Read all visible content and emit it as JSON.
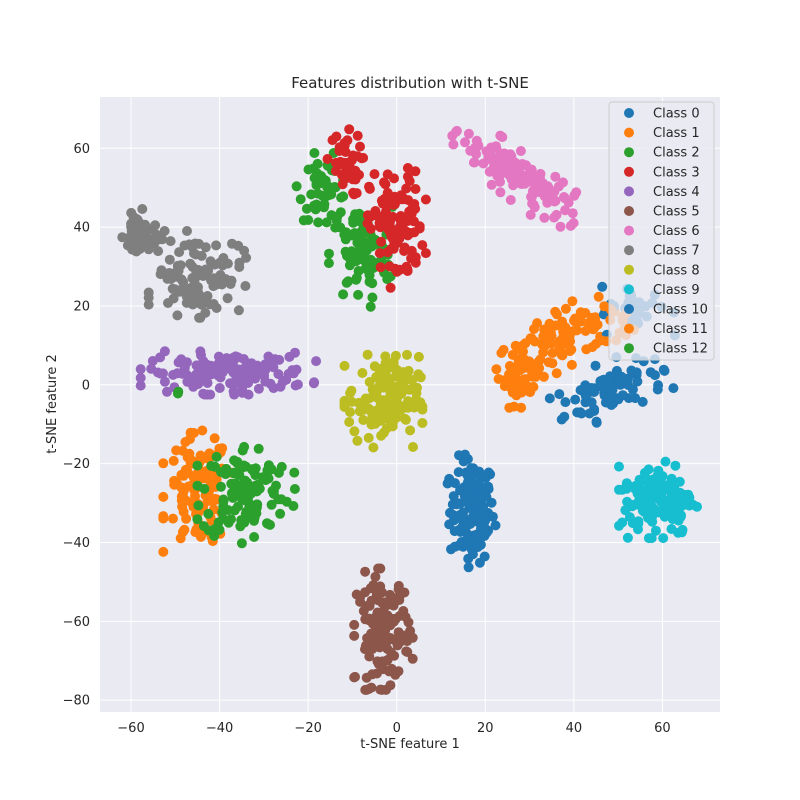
{
  "chart_data": {
    "type": "scatter",
    "title": "Features distribution with t-SNE",
    "xlabel": "t-SNE feature 1",
    "ylabel": "t-SNE feature 2",
    "xlim": [
      -67,
      73
    ],
    "ylim": [
      -83,
      73
    ],
    "xticks": [
      -60,
      -40,
      -20,
      0,
      20,
      40,
      60
    ],
    "yticks": [
      -80,
      -60,
      -40,
      -20,
      0,
      20,
      40,
      60
    ],
    "grid": true,
    "legend_position": "top-right",
    "series": [
      {
        "name": "Class 0",
        "color": "#1f77b4",
        "clusters": [
          {
            "cx": 17,
            "cy": -32,
            "sx": 2.5,
            "sy": 6.5,
            "n": 140
          },
          {
            "cx": 48,
            "cy": -1,
            "sx": 6,
            "sy": 3,
            "n": 90,
            "angle": 25
          }
        ]
      },
      {
        "name": "Class 1",
        "color": "#ff7f0e",
        "clusters": [
          {
            "cx": 28,
            "cy": 3,
            "sx": 2.5,
            "sy": 4,
            "n": 55
          },
          {
            "cx": 38,
            "cy": 12,
            "sx": 7,
            "sy": 3,
            "n": 90,
            "angle": 35
          },
          {
            "cx": -45,
            "cy": -27,
            "sx": 3.5,
            "sy": 7,
            "n": 110
          }
        ]
      },
      {
        "name": "Class 2",
        "color": "#2ca02c",
        "clusters": [
          {
            "cx": -16,
            "cy": 50,
            "sx": 3,
            "sy": 4,
            "n": 55
          },
          {
            "cx": -8,
            "cy": 33,
            "sx": 3.5,
            "sy": 6,
            "n": 90
          },
          {
            "cx": -34,
            "cy": -27,
            "sx": 5,
            "sy": 6,
            "n": 120
          }
        ]
      },
      {
        "name": "Class 3",
        "color": "#d62728",
        "clusters": [
          {
            "cx": -12,
            "cy": 56,
            "sx": 2,
            "sy": 4,
            "n": 40
          },
          {
            "cx": 0,
            "cy": 40,
            "sx": 3,
            "sy": 7,
            "n": 110
          }
        ]
      },
      {
        "name": "Class 4",
        "color": "#9467bd",
        "clusters": [
          {
            "cx": -38,
            "cy": 3,
            "sx": 9,
            "sy": 2.5,
            "n": 150
          }
        ]
      },
      {
        "name": "Class 5",
        "color": "#8c564b",
        "clusters": [
          {
            "cx": -3,
            "cy": -62,
            "sx": 3,
            "sy": 7,
            "n": 130
          }
        ]
      },
      {
        "name": "Class 6",
        "color": "#e377c2",
        "clusters": [
          {
            "cx": 27,
            "cy": 53,
            "sx": 8,
            "sy": 2.5,
            "n": 140,
            "angle": -40
          }
        ]
      },
      {
        "name": "Class 7",
        "color": "#7f7f7f",
        "clusters": [
          {
            "cx": -58,
            "cy": 38,
            "sx": 1.8,
            "sy": 3,
            "n": 50
          },
          {
            "cx": -45,
            "cy": 28,
            "sx": 5,
            "sy": 5,
            "n": 110
          }
        ]
      },
      {
        "name": "Class 8",
        "color": "#bcbd22",
        "clusters": [
          {
            "cx": -3,
            "cy": -4,
            "sx": 4,
            "sy": 5.5,
            "n": 140
          }
        ]
      },
      {
        "name": "Class 9",
        "color": "#17becf",
        "clusters": [
          {
            "cx": 59,
            "cy": -29,
            "sx": 4,
            "sy": 4.5,
            "n": 140
          }
        ]
      },
      {
        "name": "Class 10",
        "color": "#1f77b4",
        "clusters": [
          {
            "cx": 54,
            "cy": 19,
            "sx": 4,
            "sy": 3,
            "n": 35
          }
        ]
      },
      {
        "name": "Class 11",
        "color": "#ff7f0e",
        "clusters": [
          {
            "cx": 50,
            "cy": 16,
            "sx": 2,
            "sy": 3,
            "n": 15
          }
        ]
      },
      {
        "name": "Class 12",
        "color": "#2ca02c",
        "clusters": [
          {
            "cx": -50,
            "cy": -2,
            "sx": 1,
            "sy": 1,
            "n": 2
          }
        ]
      }
    ]
  }
}
